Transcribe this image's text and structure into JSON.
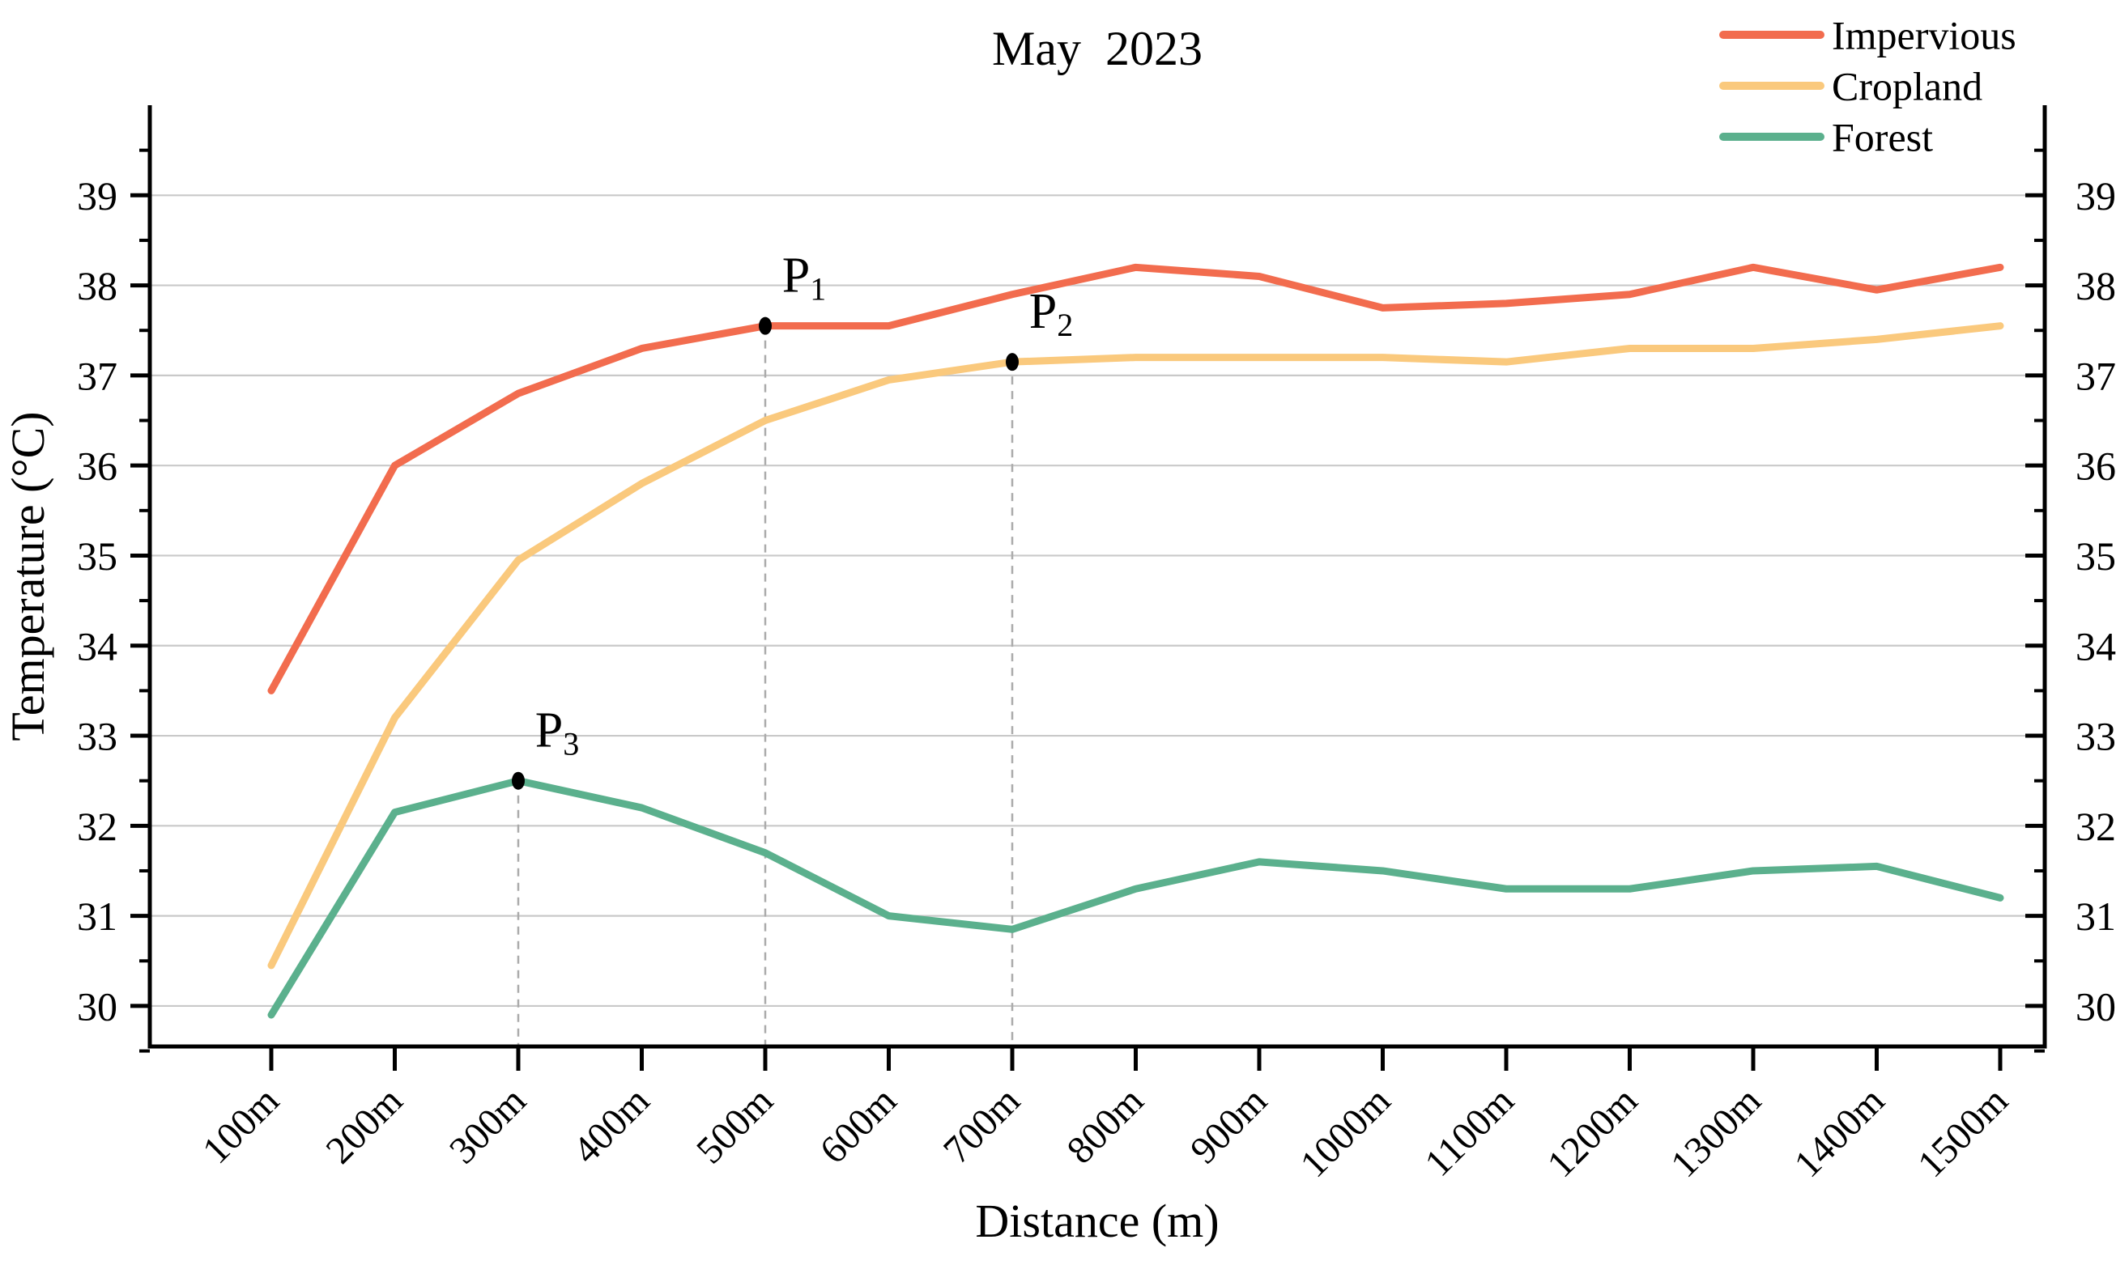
{
  "figure": {
    "title": "May  2023",
    "x_axis_label": "Distance (m)",
    "y_axis_label": "Temperature (°C)"
  },
  "chart_data": {
    "type": "line",
    "title": "May  2023",
    "xlabel": "Distance (m)",
    "ylabel": "Temperature (°C)",
    "categories": [
      "100m",
      "200m",
      "300m",
      "400m",
      "500m",
      "600m",
      "700m",
      "800m",
      "900m",
      "1000m",
      "1100m",
      "1200m",
      "1300m",
      "1400m",
      "1500m"
    ],
    "series": [
      {
        "name": "Impervious",
        "color": "#f26c4e",
        "values": [
          33.5,
          36.0,
          36.8,
          37.3,
          37.55,
          37.55,
          37.9,
          38.2,
          38.1,
          37.75,
          37.8,
          37.9,
          38.2,
          37.95,
          38.2
        ]
      },
      {
        "name": "Cropland",
        "color": "#fac97d",
        "values": [
          30.45,
          33.2,
          34.95,
          35.8,
          36.5,
          36.95,
          37.15,
          37.2,
          37.2,
          37.2,
          37.15,
          37.3,
          37.3,
          37.4,
          37.55
        ]
      },
      {
        "name": "Forest",
        "color": "#5bb08d",
        "values": [
          29.9,
          32.15,
          32.5,
          32.2,
          31.7,
          31.0,
          30.85,
          31.3,
          31.6,
          31.5,
          31.3,
          31.3,
          31.5,
          31.55,
          31.2
        ]
      }
    ],
    "ylim": [
      29.55,
      40
    ],
    "yticks_major": [
      30,
      31,
      32,
      33,
      34,
      35,
      36,
      37,
      38,
      39,
      40
    ],
    "ytick_minor_step": 0.5,
    "grid": "horizontal-majors-30-to-39",
    "grid_color": "#c9c9c9",
    "axis_color": "#000000",
    "legend_position": "top-right-outside",
    "legend": [
      "Impervious",
      "Cropland",
      "Forest"
    ],
    "annotations": [
      {
        "label": "P",
        "subscript": "1",
        "series": "Impervious",
        "category": "500m",
        "value": 37.55
      },
      {
        "label": "P",
        "subscript": "2",
        "series": "Cropland",
        "category": "700m",
        "value": 37.15
      },
      {
        "label": "P",
        "subscript": "3",
        "series": "Forest",
        "category": "300m",
        "value": 32.5
      }
    ],
    "annotation_line_color": "#ababab",
    "annotation_marker_color": "#000000"
  }
}
